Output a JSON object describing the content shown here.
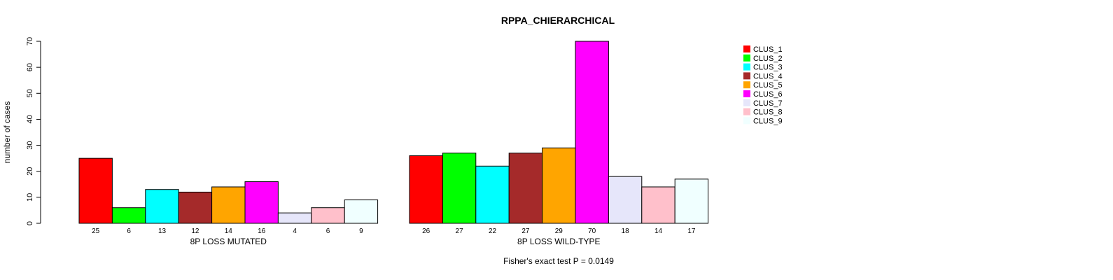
{
  "chart_data": {
    "type": "bar",
    "title": "RPPA_CHIERARCHICAL",
    "ylabel": "number of cases",
    "ylim": [
      0,
      70
    ],
    "yticks": [
      0,
      10,
      20,
      30,
      40,
      50,
      60,
      70
    ],
    "groups": [
      "8P LOSS MUTATED",
      "8P LOSS WILD-TYPE"
    ],
    "series": [
      {
        "name": "CLUS_1",
        "color": "#ff0000",
        "values": [
          25,
          26
        ],
        "labels": [
          "25",
          "26"
        ]
      },
      {
        "name": "CLUS_2",
        "color": "#00ff00",
        "values": [
          6,
          27
        ],
        "labels": [
          "6",
          "27"
        ]
      },
      {
        "name": "CLUS_3",
        "color": "#00ffff",
        "values": [
          13,
          22
        ],
        "labels": [
          "13",
          "22"
        ]
      },
      {
        "name": "CLUS_4",
        "color": "#a52a2a",
        "values": [
          12,
          27
        ],
        "labels": [
          "12",
          "27"
        ]
      },
      {
        "name": "CLUS_5",
        "color": "#ffa500",
        "values": [
          14,
          29
        ],
        "labels": [
          "14",
          "29"
        ]
      },
      {
        "name": "CLUS_6",
        "color": "#ff00ff",
        "values": [
          16,
          70
        ],
        "labels": [
          "16",
          "70"
        ]
      },
      {
        "name": "CLUS_7",
        "color": "#e6e6fa",
        "values": [
          4,
          18
        ],
        "labels": [
          "4",
          "18"
        ]
      },
      {
        "name": "CLUS_8",
        "color": "#ffc0cb",
        "values": [
          6,
          14
        ],
        "labels": [
          "6",
          "14"
        ]
      },
      {
        "name": "CLUS_9",
        "color": "#f0ffff",
        "values": [
          9,
          17
        ],
        "labels": [
          "9",
          "17"
        ]
      }
    ],
    "legend_position": "right",
    "grid": false,
    "footnote": "Fisher's exact test P = 0.0149"
  }
}
